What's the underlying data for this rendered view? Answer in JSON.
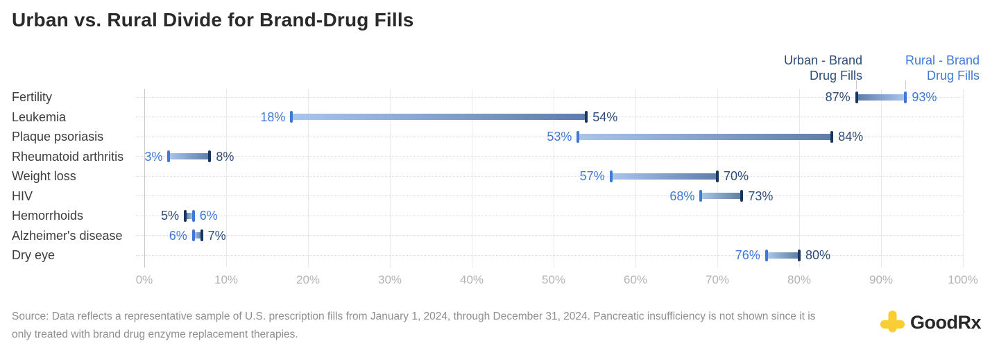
{
  "page": {
    "title": "Urban vs. Rural Divide for Brand-Drug Fills"
  },
  "legend": {
    "urban": {
      "label": "Urban - Brand\nDrug Fills",
      "color": "#2d4c76"
    },
    "rural": {
      "label": "Rural - Brand\nDrug Fills",
      "color": "#3e79d6"
    }
  },
  "chart_data": {
    "type": "dumbbell",
    "title": "Urban vs. Rural Divide for Brand-Drug Fills",
    "xlabel": "",
    "ylabel": "",
    "xlim": [
      0,
      100
    ],
    "x_ticks": [
      "0%",
      "10%",
      "20%",
      "30%",
      "40%",
      "50%",
      "60%",
      "70%",
      "80%",
      "90%",
      "100%"
    ],
    "grid": true,
    "legend_position": "top-right",
    "categories": [
      "Fertility",
      "Leukemia",
      "Plaque psoriasis",
      "Rheumatoid arthritis",
      "Weight loss",
      "HIV",
      "Hemorrhoids",
      "Alzheimer's disease",
      "Dry eye"
    ],
    "series": [
      {
        "name": "Urban - Brand Drug Fills",
        "values": [
          87,
          54,
          84,
          8,
          70,
          73,
          5,
          7,
          80
        ],
        "cap_color": "#16365f",
        "label_color": "#2d4c76"
      },
      {
        "name": "Rural - Brand Drug Fills",
        "values": [
          93,
          18,
          53,
          3,
          57,
          68,
          6,
          6,
          76
        ],
        "cap_color": "#3e79d6",
        "label_color": "#3e79d6"
      }
    ],
    "value_labels": {
      "urban": [
        "87%",
        "54%",
        "84%",
        "8%",
        "70%",
        "73%",
        "5%",
        "7%",
        "80%"
      ],
      "rural": [
        "93%",
        "18%",
        "53%",
        "3%",
        "57%",
        "68%",
        "6%",
        "6%",
        "76%"
      ]
    },
    "bar_gradient": {
      "urban_end": "#5d7ea9",
      "rural_end": "#a9c5ec"
    }
  },
  "footer": {
    "source": "Source: Data reflects a representative sample of U.S. prescription fills from January 1, 2024, through December 31, 2024. Pancreatic insufficiency is not shown since it is only treated with brand drug enzyme replacement therapies.",
    "logo_text": "GoodRx",
    "logo_color": "#F9CE34"
  }
}
